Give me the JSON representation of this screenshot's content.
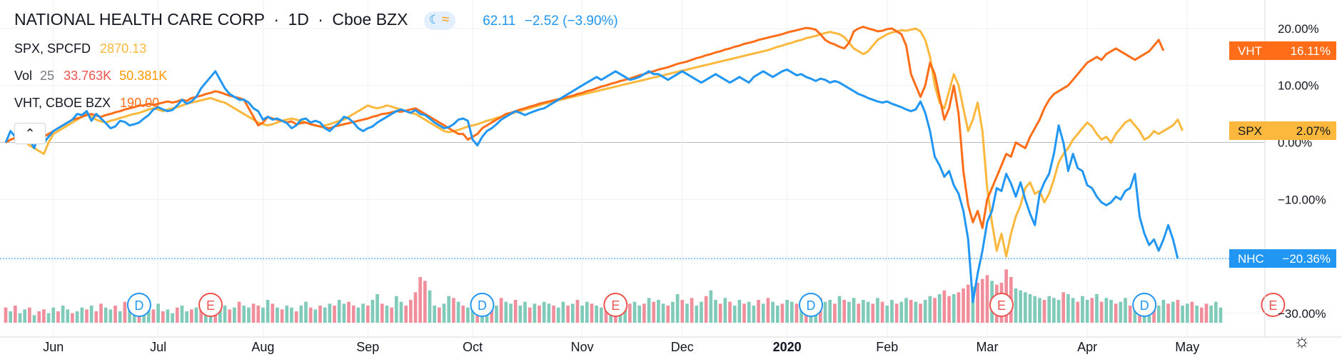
{
  "header": {
    "symbol": "NATIONAL HEALTH CARE CORP",
    "interval": "1D",
    "exchange": "Cboe BZX",
    "price": "62.11",
    "change": "−2.52 (−3.90%)",
    "separator": "·"
  },
  "legend": {
    "spx": {
      "label": "SPX, SPCFD",
      "value": "2870.13"
    },
    "vol": {
      "label": "Vol",
      "length": "25",
      "value1": "33.763K",
      "value2": "50.381K"
    },
    "vht": {
      "label": "VHT, CBOE BZX",
      "value": "190.00"
    }
  },
  "colors": {
    "nhc": "#2196f3",
    "vht": "#ff6d19",
    "spx": "#fbb83c",
    "vol_up": "#7fcab9",
    "vol_down": "#f08e9c",
    "grid": "#eef0f3",
    "zero": "#b8bcc5"
  },
  "chart_data": {
    "type": "line",
    "y_unit": "percent change",
    "ylim": [
      -32,
      25
    ],
    "yticks": [
      "20.00%",
      "10.00%",
      "0.00%",
      "−10.00%",
      "−20.00%",
      "−30.00%"
    ],
    "ytick_values": [
      20,
      10,
      0,
      -10,
      -20,
      -30
    ],
    "x_labels": [
      "Jun",
      "Jul",
      "Aug",
      "Sep",
      "Oct",
      "Nov",
      "Dec",
      "2020",
      "Feb",
      "Mar",
      "Apr",
      "May"
    ],
    "x_label_index": [
      10,
      32,
      54,
      76,
      98,
      121,
      142,
      164,
      185,
      206,
      227,
      248
    ],
    "n_points": 256,
    "series": [
      {
        "name": "NHC",
        "tag_value": "−20.36%",
        "color": "#2196f3",
        "values": [
          0,
          2,
          1,
          1.5,
          2.3,
          0.5,
          -1,
          2,
          0,
          1,
          2,
          2.5,
          3,
          3.5,
          4,
          5,
          4.8,
          5.5,
          3.8,
          5,
          4.2,
          3.4,
          2.5,
          2.8,
          3.8,
          3.6,
          3,
          3.2,
          3.5,
          4.2,
          4.8,
          5.8,
          6.2,
          5.8,
          5.5,
          5.7,
          6.5,
          7.5,
          6.8,
          7.2,
          8,
          9.5,
          10.5,
          11.5,
          12.5,
          11,
          9.5,
          8.5,
          8,
          7.5,
          7.5,
          7,
          6,
          5.5,
          4,
          4.5,
          4,
          4.2,
          3.8,
          3.4,
          2.5,
          3,
          4,
          4.2,
          3.5,
          3.8,
          3.5,
          2.5,
          2,
          2.8,
          3.5,
          4.5,
          4.2,
          3.5,
          2.5,
          2,
          2.5,
          2.8,
          3.5,
          4,
          4.5,
          5,
          5.5,
          5.8,
          5.5,
          5.2,
          5.7,
          5,
          4.8,
          4.2,
          3.5,
          3,
          2.5,
          2.7,
          3.2,
          4,
          4.2,
          3.8,
          0.5,
          -0.5,
          1,
          2,
          2.5,
          3.2,
          4,
          4.5,
          5,
          5.5,
          5.2,
          4.8,
          5.2,
          5.5,
          5.8,
          6,
          6.5,
          7,
          7.5,
          8,
          8.5,
          9,
          9.5,
          10,
          10.5,
          11,
          11.5,
          11,
          11.5,
          12,
          12.5,
          12,
          11.5,
          11,
          11.2,
          11.5,
          12,
          12.5,
          12,
          12,
          11.5,
          11,
          11.5,
          12,
          12.5,
          12,
          11.5,
          11,
          10.5,
          11,
          11.5,
          12,
          11.5,
          11,
          10.5,
          11,
          11.5,
          11,
          10.5,
          11.5,
          12,
          12.5,
          12,
          11.5,
          12,
          12.5,
          12.8,
          12.3,
          11.8,
          12,
          11.5,
          11.2,
          10.8,
          11.2,
          11,
          10.5,
          10.8,
          10.5,
          10,
          9.5,
          9,
          8.5,
          8.2,
          7.8,
          7.5,
          7.2,
          7,
          7.2,
          6.8,
          6.5,
          6.2,
          5.8,
          5.5,
          5.8,
          7.2,
          5.2,
          2,
          -2.5,
          -4,
          -6,
          -5,
          -7.5,
          -9,
          -12,
          -17,
          -28,
          -23,
          -19,
          -14,
          -12,
          -8,
          -8.5,
          -5.5,
          -7.2,
          -9.5,
          -7,
          -10,
          -12.5,
          -14.5,
          -9,
          -7,
          -5.5,
          -2,
          3,
          0,
          -5,
          -2,
          -4.5,
          -5,
          -7.5,
          -8,
          -9.5,
          -10.5,
          -11,
          -10.5,
          -9.5,
          -10,
          -8.5,
          -8,
          -5.5,
          -13,
          -16,
          -18,
          -17,
          -19,
          -17,
          -14.5,
          -17,
          -20.36
        ]
      },
      {
        "name": "VHT",
        "tag_value": "16.11%",
        "color": "#ff6d19",
        "values": [
          0,
          0.5,
          0.8,
          1,
          1.5,
          1.2,
          0.8,
          0.5,
          1,
          1.5,
          2,
          2.5,
          3,
          3.5,
          4,
          4.2,
          4.5,
          4.8,
          5,
          4.7,
          4.5,
          4.8,
          5,
          5.3,
          5.5,
          5.8,
          6,
          6.2,
          6.5,
          6.5,
          6.8,
          6.6,
          6.8,
          7,
          7.2,
          7,
          7.2,
          7.5,
          7.3,
          7.8,
          8,
          8.2,
          8.5,
          8.7,
          9,
          8.8,
          8.5,
          8.2,
          8,
          7.8,
          7.5,
          6,
          4.5,
          3,
          3.5,
          4.5,
          4.2,
          4,
          3.8,
          3.5,
          3.7,
          3.2,
          3.4,
          3.5,
          3.2,
          3,
          2.8,
          2.6,
          2.5,
          2.8,
          3,
          3.2,
          3.4,
          3.6,
          3.8,
          4,
          4.2,
          4.5,
          4.7,
          5,
          5.1,
          5.3,
          5.5,
          5.4,
          5.6,
          5.8,
          6,
          5.5,
          5,
          4.5,
          4,
          3.5,
          3,
          2.5,
          2,
          1.5,
          1.5,
          0.5,
          1,
          1.5,
          2.5,
          3,
          3.5,
          4,
          4.5,
          5,
          5.2,
          5.5,
          5.8,
          6,
          6.3,
          6.5,
          6.8,
          7,
          7.2,
          7.4,
          7.6,
          7.8,
          8,
          8.2,
          8.5,
          8.7,
          9,
          9.2,
          9.5,
          9.8,
          10,
          10.3,
          10.5,
          10.8,
          11,
          11.2,
          11.5,
          11.8,
          12,
          12.3,
          12.5,
          12.8,
          13,
          13.2,
          13.5,
          13.8,
          14,
          14.2,
          14.5,
          14.8,
          15,
          15.3,
          15.5,
          15.8,
          16,
          16.3,
          16.5,
          16.8,
          17,
          17.3,
          17.5,
          17.7,
          18,
          18.2,
          18.4,
          18.6,
          18.8,
          19,
          19.3,
          19.5,
          19.7,
          19.9,
          20.1,
          20,
          19.8,
          19,
          18,
          17.5,
          17.2,
          16.8,
          16.5,
          17.5,
          19.5,
          20,
          20.3,
          20,
          19.8,
          19.5,
          19.6,
          19.9,
          20,
          19.5,
          19,
          17,
          12,
          10,
          8,
          10,
          14,
          12,
          8,
          4,
          6,
          10,
          5,
          -5,
          -11,
          -14,
          -12,
          -15,
          -10,
          -8,
          -6,
          -4,
          -2,
          -2.5,
          0,
          -0.5,
          -1,
          1,
          2.5,
          4,
          6,
          7.5,
          8.5,
          9,
          9.5,
          10,
          11,
          12,
          13,
          14,
          14.5,
          15,
          14.5,
          15.5,
          16,
          16.5,
          16,
          15.5,
          15,
          14.5,
          15,
          15.5,
          16,
          17,
          18,
          16.11
        ]
      },
      {
        "name": "SPX",
        "tag_value": "2.07%",
        "color": "#fbb83c",
        "values": [
          0,
          0.5,
          0.8,
          0.5,
          0.2,
          -0.5,
          -1,
          -1.5,
          -2,
          0,
          1.5,
          2,
          2.5,
          3,
          3.5,
          4,
          4.5,
          5,
          4.5,
          4,
          3.7,
          3.5,
          3.8,
          4,
          4.3,
          4.5,
          4.8,
          5,
          5.2,
          5.5,
          5.8,
          6,
          5.8,
          5.5,
          5.8,
          6,
          6.2,
          6.5,
          6.8,
          7,
          7.2,
          7.4,
          7.6,
          7.8,
          7.5,
          7.2,
          7,
          6.5,
          6,
          5.5,
          5,
          4.5,
          4,
          3.5,
          3.2,
          3,
          3.2,
          3.5,
          3.8,
          4,
          4.2,
          4,
          3.8,
          3.5,
          3.2,
          3,
          2.8,
          3,
          3.2,
          3.5,
          3.8,
          4,
          4.5,
          5,
          5.5,
          6,
          6.5,
          6.2,
          6,
          6.2,
          6.5,
          6.3,
          6,
          5.8,
          5.5,
          5.2,
          5,
          4.5,
          4,
          3.5,
          3,
          2.5,
          2,
          1.8,
          2,
          2.2,
          2.5,
          2.8,
          3,
          3.2,
          3.5,
          3.8,
          4,
          4.3,
          4.5,
          4.8,
          5,
          5.3,
          5.5,
          5.8,
          6,
          6.3,
          6.5,
          6.8,
          7,
          7.2,
          7.4,
          7.6,
          7.8,
          8,
          8.2,
          8.4,
          8.6,
          8.8,
          9,
          9.2,
          9.4,
          9.6,
          9.8,
          10,
          10.2,
          10.4,
          10.6,
          10.8,
          11,
          11.2,
          11.4,
          11.6,
          11.8,
          12,
          12.2,
          12.4,
          12.6,
          12.8,
          13,
          13.2,
          13.4,
          13.6,
          13.8,
          14,
          14.2,
          14.4,
          14.6,
          14.8,
          15,
          15.2,
          15.4,
          15.6,
          15.8,
          16,
          16.2,
          16.5,
          16.8,
          17,
          17.3,
          17.5,
          17.8,
          18,
          18.3,
          18.5,
          18.7,
          19,
          19.2,
          19.4,
          19.2,
          19,
          18.5,
          17.5,
          16.5,
          16,
          15.5,
          16,
          17,
          18,
          18.5,
          19,
          19.3,
          19.5,
          19.7,
          19.6,
          19.8,
          20,
          19.5,
          18,
          15,
          10,
          7,
          6,
          9,
          12,
          10,
          6,
          2,
          4,
          7,
          2,
          -8,
          -14,
          -19,
          -16,
          -20,
          -16,
          -13,
          -11,
          -8,
          -7,
          -9,
          -8.5,
          -10.5,
          -9,
          -6.5,
          -3.5,
          -2,
          -1,
          0.5,
          1.5,
          2.5,
          3.5,
          2.8,
          1.5,
          0.5,
          1,
          0,
          1.5,
          2.5,
          3.5,
          4,
          3,
          2,
          0.5,
          1,
          2,
          1.5,
          2,
          2.5,
          3,
          4,
          2.07
        ]
      }
    ],
    "volume": {
      "values": [
        8,
        6,
        9,
        5,
        7,
        8,
        4,
        6,
        7,
        5,
        8,
        6,
        9,
        7,
        5,
        6,
        8,
        7,
        9,
        6,
        10,
        8,
        7,
        9,
        6,
        11,
        8,
        7,
        13,
        9,
        8,
        7,
        10,
        6,
        7,
        5,
        8,
        9,
        6,
        7,
        8,
        10,
        12,
        9,
        8,
        10,
        9,
        7,
        8,
        11,
        9,
        8,
        10,
        9,
        8,
        12,
        10,
        8,
        7,
        9,
        8,
        6,
        9,
        11,
        8,
        7,
        9,
        8,
        10,
        9,
        12,
        10,
        11,
        9,
        8,
        10,
        9,
        12,
        15,
        10,
        9,
        8,
        14,
        11,
        9,
        12,
        16,
        24,
        22,
        17,
        9,
        8,
        10,
        14,
        13,
        11,
        9,
        8,
        10,
        9,
        12,
        11,
        10,
        9,
        13,
        11,
        10,
        12,
        9,
        11,
        8,
        10,
        9,
        11,
        10,
        9,
        8,
        11,
        9,
        10,
        12,
        9,
        11,
        10,
        9,
        8,
        12,
        10,
        11,
        9,
        12,
        10,
        11,
        9,
        10,
        13,
        11,
        12,
        10,
        9,
        11,
        15,
        12,
        10,
        13,
        9,
        11,
        14,
        17,
        12,
        10,
        13,
        11,
        9,
        12,
        10,
        11,
        9,
        12,
        10,
        13,
        11,
        9,
        10,
        12,
        11,
        10,
        9,
        12,
        11,
        10,
        13,
        11,
        12,
        10,
        14,
        12,
        11,
        13,
        10,
        12,
        11,
        10,
        13,
        11,
        9,
        12,
        10,
        11,
        13,
        12,
        11,
        10,
        12,
        14,
        13,
        15,
        17,
        14,
        15,
        16,
        18,
        20,
        19,
        21,
        23,
        25,
        22,
        20,
        21,
        28,
        24,
        18,
        17,
        16,
        15,
        14,
        13,
        12,
        14,
        13,
        12,
        16,
        15,
        13,
        11,
        14,
        12,
        13,
        15,
        11,
        13,
        12,
        10,
        11,
        13,
        9,
        10,
        11,
        9,
        10,
        11,
        9,
        12,
        10,
        11,
        12,
        9,
        10,
        11,
        9,
        8,
        10,
        9,
        11,
        8
      ],
      "down_flags": [
        1,
        0,
        1,
        0,
        0,
        1,
        0,
        1,
        1,
        0,
        0,
        1,
        0,
        0,
        1,
        0,
        0,
        1,
        0,
        1,
        1,
        0,
        0,
        1,
        0,
        1,
        0,
        0,
        1,
        0,
        0,
        1,
        0,
        1,
        0,
        0,
        1,
        0,
        0,
        1,
        0,
        1,
        0,
        0,
        1,
        0,
        0,
        1,
        0,
        1,
        0,
        0,
        1,
        1,
        0,
        0,
        1,
        0,
        1,
        0,
        0,
        1,
        0,
        0,
        1,
        0,
        1,
        0,
        0,
        1,
        0,
        0,
        1,
        1,
        0,
        0,
        1,
        0,
        0,
        1,
        0,
        1,
        0,
        0,
        1,
        1,
        1,
        1,
        1,
        0,
        0,
        1,
        0,
        0,
        1,
        0,
        1,
        0,
        0,
        1,
        0,
        0,
        1,
        0,
        1,
        0,
        0,
        1,
        0,
        0,
        1,
        0,
        1,
        0,
        0,
        1,
        0,
        0,
        1,
        0,
        1,
        0,
        0,
        1,
        0,
        0,
        1,
        0,
        1,
        0,
        0,
        1,
        0,
        0,
        1,
        0,
        1,
        0,
        0,
        1,
        0,
        0,
        1,
        0,
        1,
        0,
        0,
        1,
        0,
        0,
        1,
        0,
        1,
        0,
        0,
        1,
        0,
        0,
        1,
        0,
        1,
        0,
        0,
        1,
        0,
        0,
        1,
        0,
        1,
        0,
        0,
        1,
        0,
        0,
        1,
        0,
        1,
        0,
        0,
        1,
        0,
        0,
        1,
        0,
        1,
        0,
        0,
        1,
        0,
        0,
        1,
        0,
        1,
        0,
        0,
        1,
        0,
        1,
        1,
        0,
        1,
        1,
        1,
        0,
        1,
        1,
        1,
        0,
        1,
        1,
        1,
        1,
        0,
        0,
        0,
        0,
        0,
        0,
        1,
        0,
        0,
        0,
        1,
        0,
        0,
        1,
        0,
        0,
        1,
        0,
        1,
        0,
        0,
        1,
        0,
        0,
        1,
        0,
        1,
        0,
        0,
        1,
        0,
        0,
        1,
        0,
        1,
        0,
        0,
        1,
        0,
        1,
        1,
        0
      ]
    },
    "events": [
      {
        "type": "D",
        "index": 28
      },
      {
        "type": "E",
        "index": 43
      },
      {
        "type": "D",
        "index": 100
      },
      {
        "type": "E",
        "index": 128
      },
      {
        "type": "D",
        "index": 169
      },
      {
        "type": "E",
        "index": 209
      },
      {
        "type": "D",
        "index": 239
      },
      {
        "type": "E",
        "index": 266
      }
    ]
  }
}
